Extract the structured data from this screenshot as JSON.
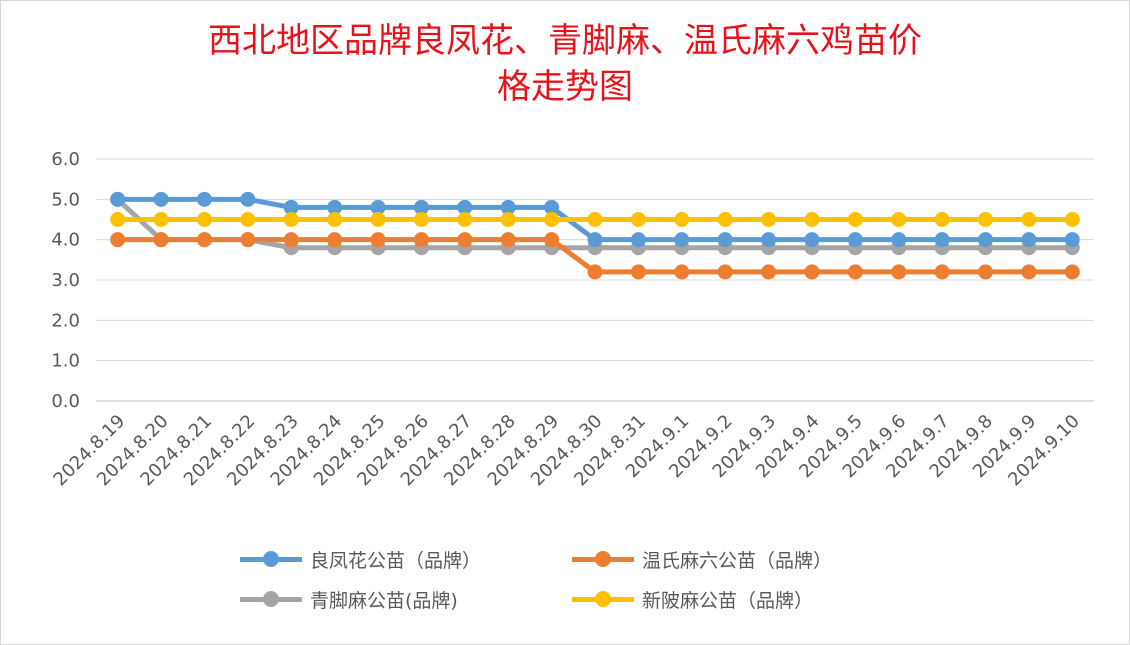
{
  "chart_data": {
    "type": "line",
    "title_lines": [
      "西北地区品牌良凤花、青脚麻、温氏麻六鸡苗价",
      "格走势图"
    ],
    "xlabel": "",
    "ylabel": "",
    "ylim": [
      0,
      6
    ],
    "yticks": [
      "0.0",
      "1.0",
      "2.0",
      "3.0",
      "4.0",
      "5.0",
      "6.0"
    ],
    "grid": true,
    "legend_position": "bottom",
    "categories": [
      "2024.8.19",
      "2024.8.20",
      "2024.8.21",
      "2024.8.22",
      "2024.8.23",
      "2024.8.24",
      "2024.8.25",
      "2024.8.26",
      "2024.8.27",
      "2024.8.28",
      "2024.8.29",
      "2024.8.30",
      "2024.8.31",
      "2024.9.1",
      "2024.9.2",
      "2024.9.3",
      "2024.9.4",
      "2024.9.5",
      "2024.9.6",
      "2024.9.7",
      "2024.9.8",
      "2024.9.9",
      "2024.9.10"
    ],
    "series": [
      {
        "name": "良凤花公苗（品牌）",
        "color": "#5b9bd5",
        "values": [
          5.0,
          5.0,
          5.0,
          5.0,
          4.8,
          4.8,
          4.8,
          4.8,
          4.8,
          4.8,
          4.8,
          4.0,
          4.0,
          4.0,
          4.0,
          4.0,
          4.0,
          4.0,
          4.0,
          4.0,
          4.0,
          4.0,
          4.0
        ]
      },
      {
        "name": "温氏麻六公苗（品牌）",
        "color": "#ed7d31",
        "values": [
          4.0,
          4.0,
          4.0,
          4.0,
          4.0,
          4.0,
          4.0,
          4.0,
          4.0,
          4.0,
          4.0,
          3.2,
          3.2,
          3.2,
          3.2,
          3.2,
          3.2,
          3.2,
          3.2,
          3.2,
          3.2,
          3.2,
          3.2
        ]
      },
      {
        "name": "青脚麻公苗(品牌)",
        "color": "#a5a5a5",
        "values": [
          5.0,
          4.0,
          4.0,
          4.0,
          3.8,
          3.8,
          3.8,
          3.8,
          3.8,
          3.8,
          3.8,
          3.8,
          3.8,
          3.8,
          3.8,
          3.8,
          3.8,
          3.8,
          3.8,
          3.8,
          3.8,
          3.8,
          3.8
        ]
      },
      {
        "name": "新陂麻公苗（品牌）",
        "color": "#ffc000",
        "values": [
          4.5,
          4.5,
          4.5,
          4.5,
          4.5,
          4.5,
          4.5,
          4.5,
          4.5,
          4.5,
          4.5,
          4.5,
          4.5,
          4.5,
          4.5,
          4.5,
          4.5,
          4.5,
          4.5,
          4.5,
          4.5,
          4.5,
          4.5
        ]
      }
    ],
    "draw_order": [
      2,
      0,
      1,
      3
    ]
  }
}
